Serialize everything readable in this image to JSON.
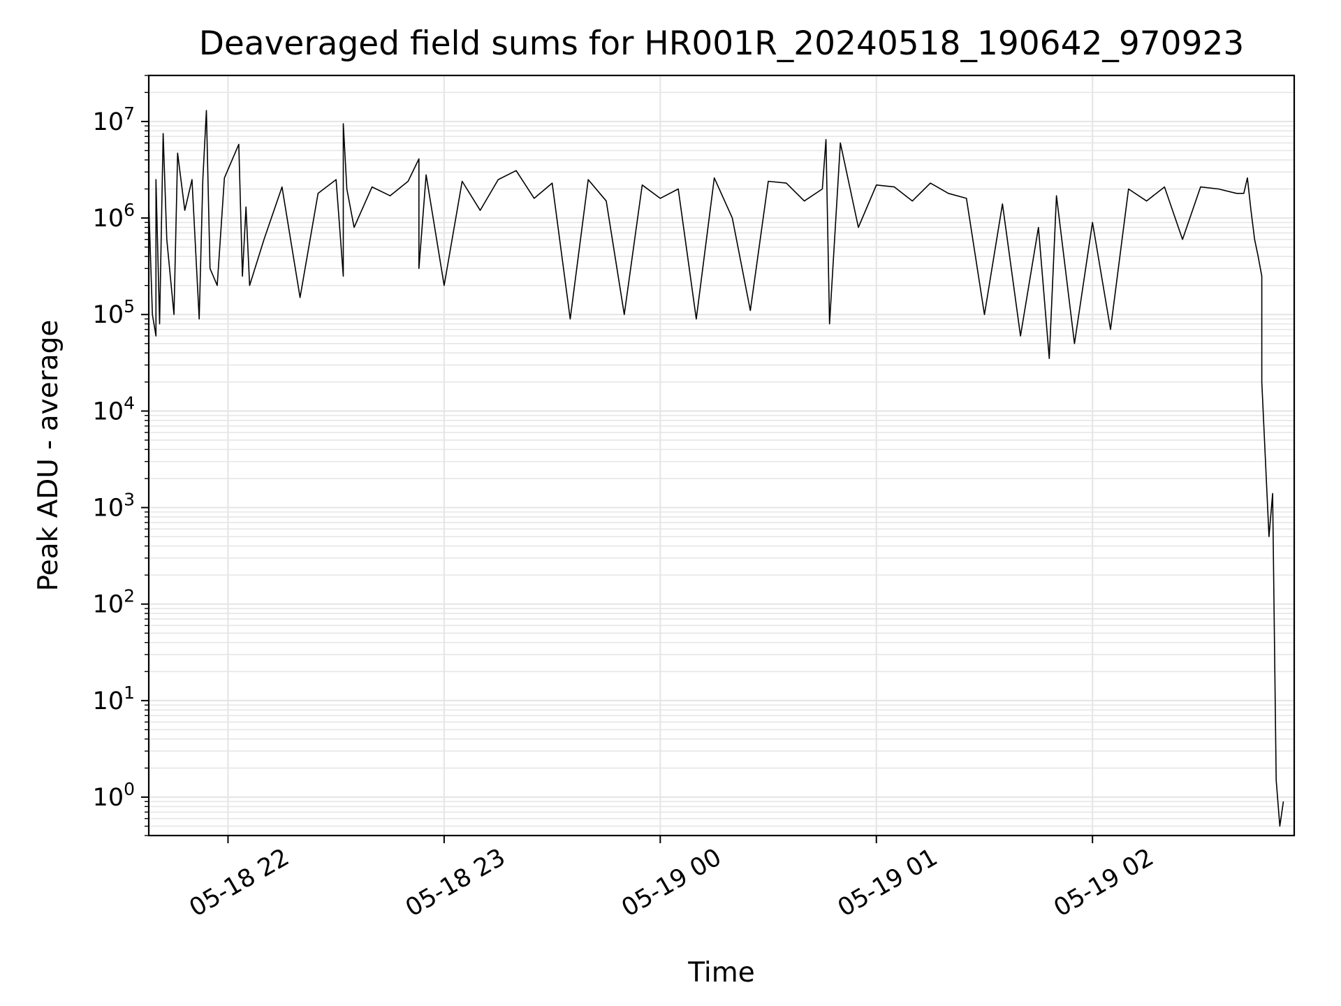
{
  "chart_data": {
    "type": "line",
    "title": "Deaveraged field sums for HR001R_20240518_190642_970923",
    "xlabel": "Time",
    "ylabel": "Peak ADU - average",
    "y_scale": "log",
    "ylim": [
      0.4,
      30000000
    ],
    "xlim": [
      "2024-05-18 21:38",
      "2024-05-19 02:56"
    ],
    "x_ticks": [
      {
        "value": "2024-05-18 22:00",
        "label": "05-18 22"
      },
      {
        "value": "2024-05-18 23:00",
        "label": "05-18 23"
      },
      {
        "value": "2024-05-19 00:00",
        "label": "05-19 00"
      },
      {
        "value": "2024-05-19 01:00",
        "label": "05-19 01"
      },
      {
        "value": "2024-05-19 02:00",
        "label": "05-19 02"
      }
    ],
    "y_ticks": [
      {
        "value": 1,
        "base": "10",
        "exp": "0"
      },
      {
        "value": 10,
        "base": "10",
        "exp": "1"
      },
      {
        "value": 100,
        "base": "10",
        "exp": "2"
      },
      {
        "value": 1000,
        "base": "10",
        "exp": "3"
      },
      {
        "value": 10000,
        "base": "10",
        "exp": "4"
      },
      {
        "value": 100000,
        "base": "10",
        "exp": "5"
      },
      {
        "value": 1000000,
        "base": "10",
        "exp": "6"
      },
      {
        "value": 10000000,
        "base": "10",
        "exp": "7"
      }
    ],
    "grid": true,
    "line_color": "#000000",
    "grid_color": "#e6e6e6",
    "series": [
      {
        "x": [
          "2024-05-18 21:38",
          "2024-05-18 21:39",
          "2024-05-18 21:40",
          "2024-05-18 21:40",
          "2024-05-18 21:41",
          "2024-05-18 21:42",
          "2024-05-18 21:43",
          "2024-05-18 21:45",
          "2024-05-18 21:46",
          "2024-05-18 21:48",
          "2024-05-18 21:50",
          "2024-05-18 21:52",
          "2024-05-18 21:53",
          "2024-05-18 21:54",
          "2024-05-18 21:55",
          "2024-05-18 21:57",
          "2024-05-18 21:59",
          "2024-05-18 22:03",
          "2024-05-18 22:04",
          "2024-05-18 22:05",
          "2024-05-18 22:06",
          "2024-05-18 22:10",
          "2024-05-18 22:15",
          "2024-05-18 22:20",
          "2024-05-18 22:25",
          "2024-05-18 22:30",
          "2024-05-18 22:32",
          "2024-05-18 22:32",
          "2024-05-18 22:33",
          "2024-05-18 22:35",
          "2024-05-18 22:40",
          "2024-05-18 22:45",
          "2024-05-18 22:50",
          "2024-05-18 22:53",
          "2024-05-18 22:53",
          "2024-05-18 22:55",
          "2024-05-18 23:00",
          "2024-05-18 23:05",
          "2024-05-18 23:10",
          "2024-05-18 23:15",
          "2024-05-18 23:20",
          "2024-05-18 23:25",
          "2024-05-18 23:30",
          "2024-05-18 23:35",
          "2024-05-18 23:40",
          "2024-05-18 23:45",
          "2024-05-18 23:50",
          "2024-05-18 23:55",
          "2024-05-19 00:00",
          "2024-05-19 00:05",
          "2024-05-19 00:10",
          "2024-05-19 00:15",
          "2024-05-19 00:20",
          "2024-05-19 00:25",
          "2024-05-19 00:30",
          "2024-05-19 00:35",
          "2024-05-19 00:40",
          "2024-05-19 00:45",
          "2024-05-19 00:46",
          "2024-05-19 00:47",
          "2024-05-19 00:50",
          "2024-05-19 00:55",
          "2024-05-19 01:00",
          "2024-05-19 01:05",
          "2024-05-19 01:10",
          "2024-05-19 01:15",
          "2024-05-19 01:20",
          "2024-05-19 01:25",
          "2024-05-19 01:30",
          "2024-05-19 01:35",
          "2024-05-19 01:40",
          "2024-05-19 01:45",
          "2024-05-19 01:48",
          "2024-05-19 01:50",
          "2024-05-19 01:55",
          "2024-05-19 02:00",
          "2024-05-19 02:05",
          "2024-05-19 02:10",
          "2024-05-19 02:15",
          "2024-05-19 02:20",
          "2024-05-19 02:25",
          "2024-05-19 02:30",
          "2024-05-19 02:35",
          "2024-05-19 02:40",
          "2024-05-19 02:42",
          "2024-05-19 02:43",
          "2024-05-19 02:44",
          "2024-05-19 02:45",
          "2024-05-19 02:46",
          "2024-05-19 02:47",
          "2024-05-19 02:47",
          "2024-05-19 02:49",
          "2024-05-19 02:50",
          "2024-05-19 02:51",
          "2024-05-19 02:52",
          "2024-05-19 02:53"
        ],
        "y": [
          1400000,
          100000,
          60000,
          2500000,
          80000,
          7500000,
          600000,
          100000,
          4700000,
          1200000,
          2500000,
          90000,
          2500000,
          13000000,
          300000,
          200000,
          2600000,
          5800000,
          250000,
          1300000,
          200000,
          600000,
          2100000,
          150000,
          1800000,
          2500000,
          250000,
          9500000,
          2000000,
          800000,
          2100000,
          1700000,
          2400000,
          4100000,
          300000,
          2800000,
          200000,
          2400000,
          1200000,
          2500000,
          3100000,
          1600000,
          2300000,
          90000,
          2500000,
          1500000,
          100000,
          2200000,
          1600000,
          2000000,
          90000,
          2600000,
          1000000,
          110000,
          2400000,
          2300000,
          1500000,
          2000000,
          6500000,
          80000,
          6000000,
          800000,
          2200000,
          2100000,
          1500000,
          2300000,
          1800000,
          1600000,
          100000,
          1400000,
          60000,
          800000,
          35000,
          1700000,
          50000,
          900000,
          70000,
          2000000,
          1500000,
          2100000,
          600000,
          2100000,
          2000000,
          1800000,
          1800000,
          2600000,
          1200000,
          600000,
          400000,
          250000,
          20000,
          500,
          1400,
          1.5,
          0.5,
          0.9
        ]
      }
    ]
  }
}
